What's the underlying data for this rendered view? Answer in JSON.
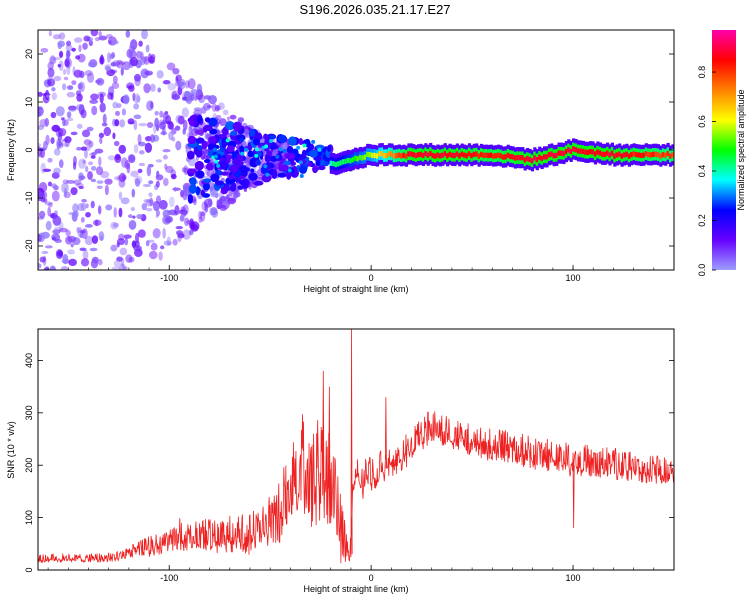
{
  "title": "S196.2026.035.21.17.E27",
  "colorbar": {
    "label": "Normalized spectral amplitude",
    "ticks": [
      "0.0",
      "0.2",
      "0.4",
      "0.6",
      "0.8"
    ],
    "tick_values": [
      0.0,
      0.2,
      0.4,
      0.6,
      0.8
    ],
    "range": [
      0.0,
      0.97
    ],
    "stops": [
      "#9e9eff",
      "#6600ff",
      "#0000ff",
      "#00ffff",
      "#00ff00",
      "#ffff00",
      "#ff8000",
      "#ff0000",
      "#ff00aa"
    ]
  },
  "chart_data": [
    {
      "type": "heatmap",
      "title": "S196.2026.035.21.17.E27",
      "xlabel": "Height of straight line (km)",
      "ylabel": "Frequency (Hz)",
      "xlim": [
        -165,
        150
      ],
      "ylim": [
        -25,
        25
      ],
      "xticks": [
        -100,
        0,
        100
      ],
      "xtick_labels": [
        "-100",
        "0",
        "100"
      ],
      "yticks": [
        -20,
        -10,
        0,
        10,
        20
      ],
      "ytick_labels": [
        "-20",
        "-10",
        "0",
        "10",
        "20"
      ],
      "description_series": [
        {
          "name": "noise scatter",
          "x_range": [
            -165,
            -40
          ],
          "freq_range": [
            -25,
            25
          ],
          "amplitude": 0.05
        },
        {
          "name": "converging band",
          "x_range": [
            -90,
            -20
          ],
          "freq_range": [
            -12,
            6
          ],
          "amplitude": 0.25
        },
        {
          "name": "signal line",
          "x": [
            -20,
            0,
            20,
            40,
            60,
            80,
            100,
            120,
            150
          ],
          "freq": [
            -3,
            -1,
            -1,
            -1,
            -1,
            -2,
            0,
            -1,
            -1
          ],
          "amplitude": [
            0.4,
            0.6,
            0.9,
            0.9,
            0.85,
            0.9,
            0.9,
            0.9,
            0.8
          ]
        }
      ]
    },
    {
      "type": "line",
      "xlabel": "Height of straight line (km)",
      "ylabel": "SNR (10 * v/v)",
      "xlim": [
        -165,
        150
      ],
      "ylim": [
        0,
        460
      ],
      "xticks": [
        -100,
        0,
        100
      ],
      "xtick_labels": [
        "-100",
        "0",
        "100"
      ],
      "yticks": [
        0,
        100,
        200,
        300,
        400
      ],
      "ytick_labels": [
        "0",
        "100",
        "200",
        "300",
        "400"
      ],
      "series": [
        {
          "name": "SNR",
          "color": "#ee2222",
          "x": [
            -165,
            -150,
            -140,
            -130,
            -120,
            -110,
            -100,
            -95,
            -90,
            -85,
            -80,
            -75,
            -70,
            -65,
            -60,
            -55,
            -50,
            -45,
            -40,
            -35,
            -30,
            -25,
            -20,
            -15,
            -12,
            -10,
            -9,
            -8,
            -6,
            -4,
            -2,
            0,
            5,
            10,
            15,
            20,
            25,
            30,
            35,
            40,
            45,
            50,
            60,
            70,
            80,
            90,
            100,
            110,
            120,
            130,
            140,
            150
          ],
          "values": [
            20,
            22,
            20,
            22,
            30,
            40,
            50,
            60,
            55,
            60,
            60,
            55,
            60,
            65,
            55,
            70,
            80,
            100,
            130,
            200,
            150,
            180,
            150,
            60,
            40,
            30,
            170,
            180,
            180,
            150,
            190,
            170,
            190,
            200,
            210,
            230,
            250,
            270,
            260,
            255,
            250,
            240,
            230,
            225,
            215,
            210,
            200,
            200,
            195,
            190,
            185,
            185
          ],
          "noise_amplitude": [
            10,
            10,
            10,
            12,
            15,
            25,
            30,
            40,
            35,
            35,
            40,
            40,
            45,
            50,
            50,
            60,
            70,
            80,
            100,
            120,
            130,
            140,
            120,
            80,
            40,
            30,
            40,
            40,
            40,
            40,
            40,
            40,
            40,
            40,
            40,
            40,
            40,
            40,
            40,
            40,
            40,
            40,
            40,
            40,
            40,
            40,
            40,
            40,
            40,
            35,
            35,
            30
          ],
          "spikes": [
            {
              "x": -10,
              "y": 460
            },
            {
              "x": -24,
              "y": 380
            },
            {
              "x": -21,
              "y": 350
            },
            {
              "x": 7,
              "y": 330
            },
            {
              "x": 100,
              "y": 80
            }
          ]
        }
      ]
    }
  ]
}
